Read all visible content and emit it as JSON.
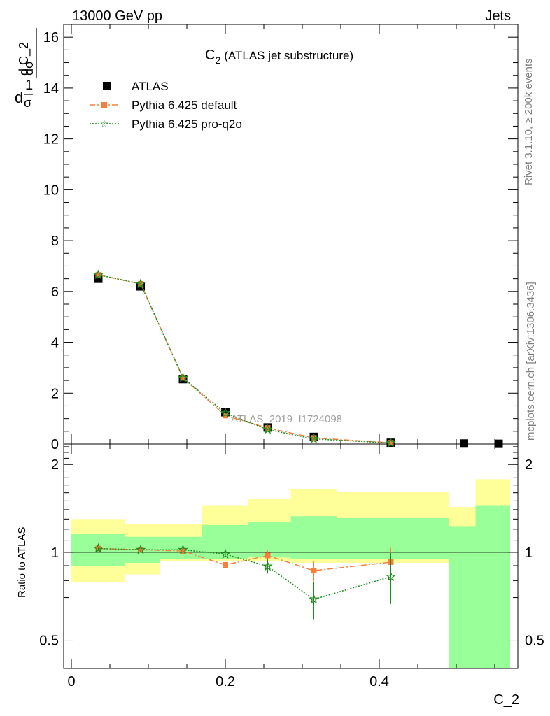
{
  "header": {
    "left": "13000 GeV pp",
    "right": "Jets"
  },
  "side_text": {
    "rivet": "Rivet 3.1.10, ≥ 200k events",
    "mcplots": "mcplots.cern.ch [arXiv:1306.3436]"
  },
  "watermark": "ATLAS_2019_I1724098",
  "colors": {
    "atlas": "#000000",
    "default": "#f5803e",
    "proq2o": "#1a8c1a",
    "band_inner": "#99ff99",
    "band_outer": "#ffff99"
  },
  "chart_data": [
    {
      "type": "line",
      "title_main": "C",
      "title_sub": "2",
      "title_rest": "(ATLAS jet substructure)",
      "ylabel": {
        "frac_top": "1",
        "frac_bottom": "σ",
        "d_top": "dσ",
        "d_bottom": "d C_2",
        "prefix": "d"
      },
      "ylim": [
        0,
        16.5
      ],
      "yticks": [
        0,
        2,
        4,
        6,
        8,
        10,
        12,
        14,
        16
      ],
      "xlim": [
        -0.01,
        0.58
      ],
      "legend_position": "top-left",
      "series": [
        {
          "name": "ATLAS",
          "marker": "square",
          "x": [
            0.035,
            0.09,
            0.145,
            0.2,
            0.255,
            0.315,
            0.415,
            0.51,
            0.555
          ],
          "y": [
            6.5,
            6.2,
            2.55,
            1.25,
            0.65,
            0.28,
            0.05,
            0.02,
            0.01
          ]
        },
        {
          "name": "Pythia 6.425 default",
          "marker": "square-small",
          "dash": "dashdot",
          "x": [
            0.035,
            0.09,
            0.145,
            0.2,
            0.255,
            0.315,
            0.415
          ],
          "y": [
            6.65,
            6.3,
            2.6,
            1.12,
            0.63,
            0.24,
            0.05
          ]
        },
        {
          "name": "Pythia 6.425 pro-q2o",
          "marker": "star",
          "dash": "dotted",
          "x": [
            0.035,
            0.09,
            0.145,
            0.2,
            0.255,
            0.315,
            0.415
          ],
          "y": [
            6.65,
            6.3,
            2.6,
            1.22,
            0.57,
            0.2,
            0.04
          ]
        }
      ]
    },
    {
      "type": "line",
      "ylabel": "Ratio to ATLAS",
      "xlabel": "C_2",
      "yscale": "log",
      "ylim": [
        0.4,
        2.35
      ],
      "yticks": [
        0.5,
        1,
        2
      ],
      "xticks": [
        0,
        0.2,
        0.4
      ],
      "xlim": [
        -0.01,
        0.58
      ],
      "reference": 1,
      "bands": {
        "edges": [
          0,
          0.07,
          0.115,
          0.17,
          0.23,
          0.285,
          0.345,
          0.49,
          0.525,
          0.57
        ],
        "outer_low": [
          0.79,
          0.84,
          0.93,
          0.93,
          0.93,
          0.92,
          0.92,
          0.0,
          0.0
        ],
        "outer_high": [
          1.3,
          1.25,
          1.25,
          1.45,
          1.52,
          1.65,
          1.61,
          1.43,
          1.78
        ],
        "inner_low": [
          0.9,
          0.92,
          0.95,
          0.95,
          0.96,
          0.95,
          0.95,
          0.0,
          0.0
        ],
        "inner_high": [
          1.16,
          1.13,
          1.13,
          1.24,
          1.27,
          1.33,
          1.31,
          1.23,
          1.45
        ]
      },
      "series": [
        {
          "name": "Pythia 6.425 default",
          "x": [
            0.035,
            0.09,
            0.145,
            0.2,
            0.255,
            0.315,
            0.415
          ],
          "y": [
            1.03,
            1.02,
            1.01,
            0.905,
            0.975,
            0.865,
            0.925
          ],
          "err_low": [
            0.01,
            0.01,
            0.01,
            0.02,
            0.04,
            0.07,
            0.1
          ],
          "err_high": [
            0.01,
            0.01,
            0.01,
            0.02,
            0.04,
            0.07,
            0.11
          ]
        },
        {
          "name": "Pythia 6.425 pro-q2o",
          "x": [
            0.035,
            0.09,
            0.145,
            0.2,
            0.255,
            0.315,
            0.415
          ],
          "y": [
            1.03,
            1.02,
            1.02,
            0.985,
            0.895,
            0.69,
            0.825
          ],
          "err_low": [
            0.01,
            0.01,
            0.01,
            0.02,
            0.05,
            0.1,
            0.16
          ],
          "err_high": [
            0.01,
            0.01,
            0.01,
            0.02,
            0.05,
            0.1,
            0.17
          ]
        }
      ]
    }
  ]
}
